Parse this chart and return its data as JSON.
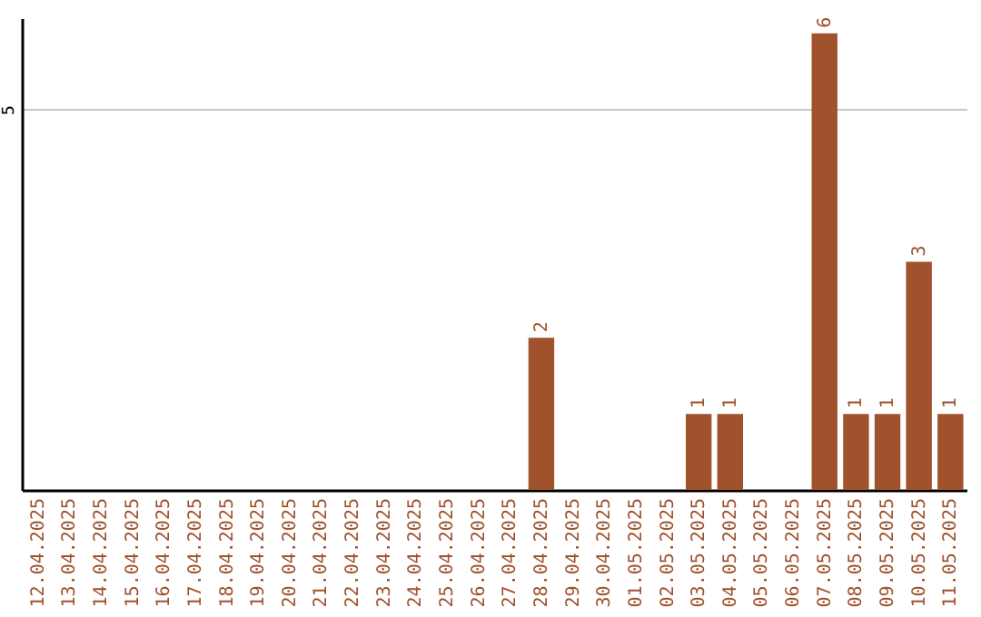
{
  "chart_data": {
    "type": "bar",
    "categories": [
      "12.04.2025",
      "13.04.2025",
      "14.04.2025",
      "15.04.2025",
      "16.04.2025",
      "17.04.2025",
      "18.04.2025",
      "19.04.2025",
      "20.04.2025",
      "21.04.2025",
      "22.04.2025",
      "23.04.2025",
      "24.04.2025",
      "25.04.2025",
      "26.04.2025",
      "27.04.2025",
      "28.04.2025",
      "29.04.2025",
      "30.04.2025",
      "01.05.2025",
      "02.05.2025",
      "03.05.2025",
      "04.05.2025",
      "05.05.2025",
      "06.05.2025",
      "07.05.2025",
      "08.05.2025",
      "09.05.2025",
      "10.05.2025",
      "11.05.2025"
    ],
    "values": [
      null,
      null,
      null,
      null,
      null,
      null,
      null,
      null,
      null,
      null,
      null,
      null,
      null,
      null,
      null,
      null,
      2,
      null,
      null,
      null,
      null,
      1,
      1,
      null,
      null,
      6,
      1,
      1,
      3,
      1
    ],
    "color": "#a0522d",
    "ylim": [
      0,
      6.2
    ],
    "yticks": [
      5
    ],
    "grid": "y",
    "data_labels": true
  }
}
